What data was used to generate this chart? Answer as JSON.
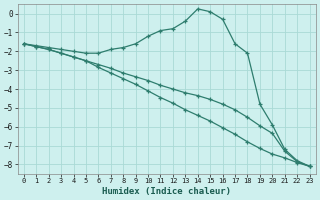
{
  "xlabel": "Humidex (Indice chaleur)",
  "background_color": "#cef0ee",
  "grid_color": "#aadad6",
  "line_color": "#2e7d6e",
  "xlim": [
    -0.5,
    23.5
  ],
  "ylim": [
    -8.5,
    0.5
  ],
  "xticks": [
    0,
    1,
    2,
    3,
    4,
    5,
    6,
    7,
    8,
    9,
    10,
    11,
    12,
    13,
    14,
    15,
    16,
    17,
    18,
    19,
    20,
    21,
    22,
    23
  ],
  "yticks": [
    0,
    -1,
    -2,
    -3,
    -4,
    -5,
    -6,
    -7,
    -8
  ],
  "line1_x": [
    0,
    1,
    2,
    3,
    4,
    5,
    6,
    7,
    8,
    9,
    10,
    11,
    12,
    13,
    14,
    15,
    16,
    17,
    18,
    19,
    20,
    21,
    22,
    23
  ],
  "line1_y": [
    -1.6,
    -1.7,
    -1.8,
    -1.9,
    -2.0,
    -2.1,
    -2.1,
    -1.9,
    -1.8,
    -1.6,
    -1.2,
    -0.9,
    -0.8,
    -0.4,
    0.25,
    0.1,
    -0.3,
    -1.6,
    -2.1,
    -4.8,
    -5.9,
    -7.2,
    -7.8,
    -8.1
  ],
  "line2_x": [
    0,
    1,
    2,
    3,
    4,
    5,
    6,
    7,
    8,
    9,
    10,
    11,
    12,
    13,
    14,
    15,
    16,
    17,
    18,
    19,
    20,
    21,
    22,
    23
  ],
  "line2_y": [
    -1.6,
    -1.75,
    -1.9,
    -2.1,
    -2.3,
    -2.5,
    -2.7,
    -2.9,
    -3.15,
    -3.35,
    -3.55,
    -3.8,
    -4.0,
    -4.2,
    -4.35,
    -4.55,
    -4.8,
    -5.1,
    -5.5,
    -5.95,
    -6.35,
    -7.3,
    -7.85,
    -8.1
  ],
  "line3_x": [
    0,
    1,
    2,
    3,
    4,
    5,
    6,
    7,
    8,
    9,
    10,
    11,
    12,
    13,
    14,
    15,
    16,
    17,
    18,
    19,
    20,
    21,
    22,
    23
  ],
  "line3_y": [
    -1.6,
    -1.75,
    -1.9,
    -2.1,
    -2.3,
    -2.5,
    -2.85,
    -3.15,
    -3.45,
    -3.75,
    -4.1,
    -4.45,
    -4.75,
    -5.1,
    -5.4,
    -5.7,
    -6.05,
    -6.4,
    -6.8,
    -7.15,
    -7.45,
    -7.65,
    -7.9,
    -8.1
  ]
}
